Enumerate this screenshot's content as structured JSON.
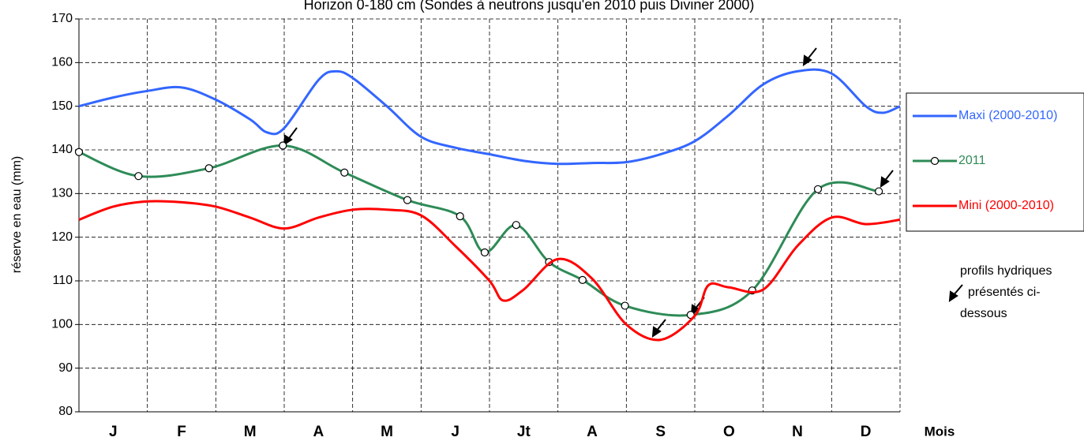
{
  "chart_data": {
    "type": "line",
    "title": "Horizon 0-180 cm (Sondes à neutrons jusqu'en 2010 puis Diviner 2000)",
    "y_label": "réserve en eau (mm)",
    "x_label": "Mois",
    "categories": [
      "J",
      "F",
      "M",
      "A",
      "M",
      "J",
      "Jt",
      "A",
      "S",
      "O",
      "N",
      "D"
    ],
    "xlim": [
      0,
      12
    ],
    "ylim": [
      80,
      170
    ],
    "yticks": [
      80,
      90,
      100,
      110,
      120,
      130,
      140,
      150,
      160,
      170
    ],
    "grid": true,
    "series": [
      {
        "name": "Maxi (2000-2010)",
        "color": "#3366ff",
        "marker": false,
        "x": [
          0,
          0.5,
          1,
          1.5,
          2,
          2.5,
          2.75,
          3,
          3.5,
          3.75,
          4,
          4.5,
          5,
          5.5,
          6,
          6.5,
          7,
          7.5,
          8,
          8.5,
          9,
          9.5,
          10,
          10.5,
          11,
          11.5,
          11.75,
          12
        ],
        "values": [
          150,
          152,
          153.5,
          154.3,
          151.5,
          147,
          144,
          145,
          156,
          158,
          156.5,
          150,
          143,
          140.5,
          139,
          137.5,
          136.8,
          137,
          137.2,
          139,
          142,
          148,
          155,
          158,
          157.5,
          150,
          148.5,
          150
        ]
      },
      {
        "name": "2011",
        "color": "#2e8b57",
        "marker": true,
        "x": [
          0,
          0.87,
          1.9,
          2.98,
          3.88,
          4.8,
          5.57,
          5.93,
          6.39,
          6.87,
          7.36,
          7.98,
          8.94,
          9.84,
          10.8,
          11.69
        ],
        "values": [
          139.5,
          134,
          135.8,
          141,
          134.8,
          128.5,
          124.8,
          116.5,
          122.8,
          114.3,
          110.2,
          104.3,
          102.2,
          107.8,
          131,
          130.5
        ]
      },
      {
        "name": "Mini (2000-2010)",
        "color": "#ff0000",
        "marker": false,
        "x": [
          0,
          0.5,
          1,
          1.5,
          2,
          2.5,
          3,
          3.5,
          4,
          4.5,
          5,
          5.5,
          6,
          6.2,
          6.5,
          7,
          7.5,
          8,
          8.5,
          9,
          9.2,
          9.5,
          10,
          10.5,
          11,
          11.5,
          12
        ],
        "values": [
          124,
          127,
          128.2,
          128,
          127,
          124.5,
          122,
          124.5,
          126.3,
          126.3,
          125,
          118,
          110,
          105.5,
          108,
          115,
          110.5,
          100,
          96.5,
          102,
          109,
          108.5,
          108,
          118,
          124.5,
          123,
          124
        ]
      }
    ],
    "annotation": "profils hydriques présentés ci-dessous"
  }
}
